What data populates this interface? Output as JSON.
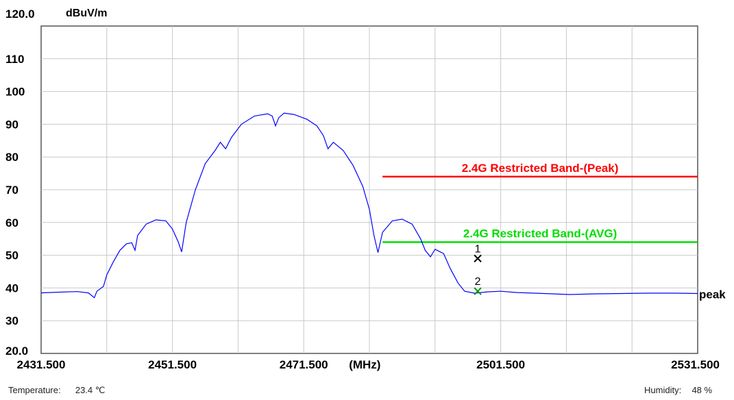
{
  "chart_data": {
    "type": "line",
    "ylabel_unit": "dBuV/m",
    "xunit": "(MHz)",
    "xlim": [
      2431.5,
      2531.5
    ],
    "ylim": [
      20,
      120
    ],
    "y_ticks": [
      20,
      30,
      40,
      50,
      60,
      70,
      80,
      90,
      100,
      110,
      120
    ],
    "y_tick_labels": [
      "20.0",
      "30",
      "40",
      "50",
      "60",
      "70",
      "80",
      "90",
      "100",
      "110",
      "120.0"
    ],
    "x_tick_labels": [
      "2431.500",
      "2451.500",
      "2471.500",
      "2501.500",
      "2531.500"
    ],
    "x_tick_values": [
      2431.5,
      2451.5,
      2471.5,
      2501.5,
      2531.5
    ],
    "grid": true,
    "limits": [
      {
        "name": "2.4G Restricted Band-(Peak)",
        "value": 74,
        "x_start": 2483.5,
        "x_end": 2531.5,
        "color": "#ff0000"
      },
      {
        "name": "2.4G Restricted Band-(AVG)",
        "value": 54,
        "x_start": 2483.5,
        "x_end": 2531.5,
        "color": "#00dd00"
      }
    ],
    "series": [
      {
        "name": "peak",
        "color": "#0000ff",
        "points": [
          [
            2431.5,
            38.5
          ],
          [
            2434,
            38.7
          ],
          [
            2437,
            38.9
          ],
          [
            2438.7,
            38.5
          ],
          [
            2439.6,
            37.0
          ],
          [
            2440,
            39.0
          ],
          [
            2441,
            40.5
          ],
          [
            2441.5,
            44
          ],
          [
            2442.5,
            48
          ],
          [
            2443.5,
            51.5
          ],
          [
            2444.5,
            53.5
          ],
          [
            2445.3,
            53.8
          ],
          [
            2445.8,
            51.5
          ],
          [
            2446.2,
            56
          ],
          [
            2447.5,
            59.5
          ],
          [
            2449,
            60.8
          ],
          [
            2450.5,
            60.5
          ],
          [
            2451.5,
            58
          ],
          [
            2452.4,
            54
          ],
          [
            2452.9,
            51.0
          ],
          [
            2453.6,
            60
          ],
          [
            2455,
            70
          ],
          [
            2456.5,
            78
          ],
          [
            2458,
            82
          ],
          [
            2458.8,
            84.5
          ],
          [
            2459.6,
            82.5
          ],
          [
            2460.5,
            86
          ],
          [
            2462,
            90
          ],
          [
            2464,
            92.5
          ],
          [
            2466,
            93.2
          ],
          [
            2466.7,
            92.5
          ],
          [
            2467.2,
            89.5
          ],
          [
            2467.7,
            92.0
          ],
          [
            2468.5,
            93.4
          ],
          [
            2470,
            93.0
          ],
          [
            2472,
            91.5
          ],
          [
            2473.5,
            89.5
          ],
          [
            2474.5,
            86.5
          ],
          [
            2475.2,
            82.5
          ],
          [
            2476,
            84.5
          ],
          [
            2477.5,
            82
          ],
          [
            2479,
            77.5
          ],
          [
            2480.5,
            71
          ],
          [
            2481.5,
            64
          ],
          [
            2482.2,
            56
          ],
          [
            2482.8,
            50.8
          ],
          [
            2483.5,
            57
          ],
          [
            2485,
            60.5
          ],
          [
            2486.5,
            61.0
          ],
          [
            2488,
            59.5
          ],
          [
            2489.3,
            55
          ],
          [
            2490,
            51.5
          ],
          [
            2490.8,
            49.5
          ],
          [
            2491.5,
            51.8
          ],
          [
            2492.8,
            50.5
          ],
          [
            2493.8,
            46
          ],
          [
            2495,
            41.5
          ],
          [
            2496,
            39
          ],
          [
            2497.5,
            38.4
          ],
          [
            2499.5,
            38.8
          ],
          [
            2501.5,
            39.0
          ],
          [
            2504,
            38.6
          ],
          [
            2508,
            38.3
          ],
          [
            2512,
            38.0
          ],
          [
            2516,
            38.2
          ],
          [
            2520,
            38.3
          ],
          [
            2524,
            38.4
          ],
          [
            2528,
            38.4
          ],
          [
            2531.5,
            38.3
          ]
        ]
      }
    ],
    "markers": [
      {
        "label": "1",
        "x": 2498.0,
        "y": 49.0,
        "color": "#000000"
      },
      {
        "label": "2",
        "x": 2498.0,
        "y": 39.0,
        "color": "#009900"
      }
    ],
    "trace_label": "peak"
  },
  "footer": {
    "temperature_label": "Temperature:",
    "temperature_value": "23.4 ℃",
    "humidity_label": "Humidity:",
    "humidity_value": "48 %"
  }
}
